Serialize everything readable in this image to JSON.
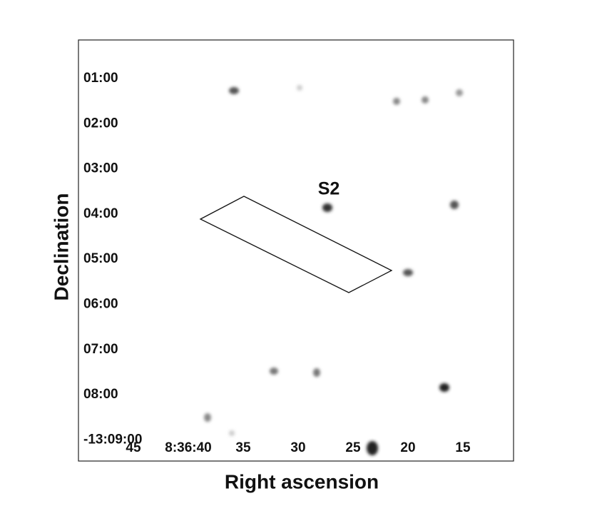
{
  "annotation": "S2",
  "x_axis": {
    "label": "Right ascension",
    "ticks": [
      "45",
      "8:36:40",
      "35",
      "30",
      "25",
      "20",
      "15"
    ]
  },
  "y_axis": {
    "label": "Declination",
    "ticks": [
      "01:00",
      "02:00",
      "03:00",
      "04:00",
      "05:00",
      "06:00",
      "07:00",
      "08:00",
      "-13:09:00"
    ]
  }
}
